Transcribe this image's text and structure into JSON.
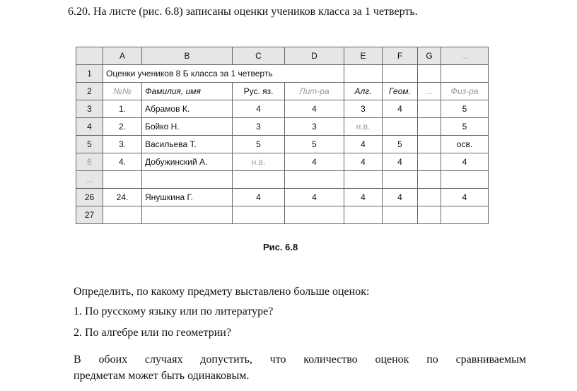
{
  "title": "6.20. На листе (рис. 6.8) записаны оценки учеников класса за 1 четверть.",
  "sheet": {
    "columns": [
      "",
      "A",
      "B",
      "C",
      "D",
      "E",
      "F",
      "G",
      "..."
    ],
    "title_row": {
      "num": "1",
      "text": "Оценки учеников 8 Б класса за 1 четверть"
    },
    "header_row": {
      "num": "2",
      "cells": [
        "№№",
        "Фамилия, имя",
        "Рус. яз.",
        "Лит-ра",
        "Алг.",
        "Геом.",
        "...",
        "Физ-ра"
      ]
    },
    "rows": [
      {
        "num": "3",
        "cells": [
          "1.",
          "Абрамов К.",
          "4",
          "4",
          "3",
          "4",
          "",
          "5"
        ]
      },
      {
        "num": "4",
        "cells": [
          "2.",
          "Бойко Н.",
          "3",
          "3",
          "н.в.",
          "",
          "",
          "5"
        ]
      },
      {
        "num": "5",
        "cells": [
          "3.",
          "Васильева Т.",
          "5",
          "5",
          "4",
          "5",
          "",
          "осв."
        ]
      },
      {
        "num": "6",
        "cells": [
          "4.",
          "Добужинский А.",
          "н.в.",
          "4",
          "4",
          "4",
          "",
          "4"
        ]
      },
      {
        "num": "...",
        "cells": [
          "",
          "",
          "",
          "",
          "",
          "",
          "",
          ""
        ]
      },
      {
        "num": "26",
        "cells": [
          "24.",
          "Янушкина Г.",
          "4",
          "4",
          "4",
          "4",
          "",
          "4"
        ]
      },
      {
        "num": "27",
        "cells": [
          "",
          "",
          "",
          "",
          "",
          "",
          "",
          ""
        ]
      }
    ]
  },
  "caption": "Рис. 6.8",
  "question": "Определить, по какому предмету выставлено больше оценок:",
  "items": [
    "1. По русскому языку или по литературе?",
    "2. По алгебре или по геометрии?"
  ],
  "note_line1": "В обоих случаях допустить, что количество оценок по сравниваемым",
  "note_line2": "предметам может быть одинаковым."
}
